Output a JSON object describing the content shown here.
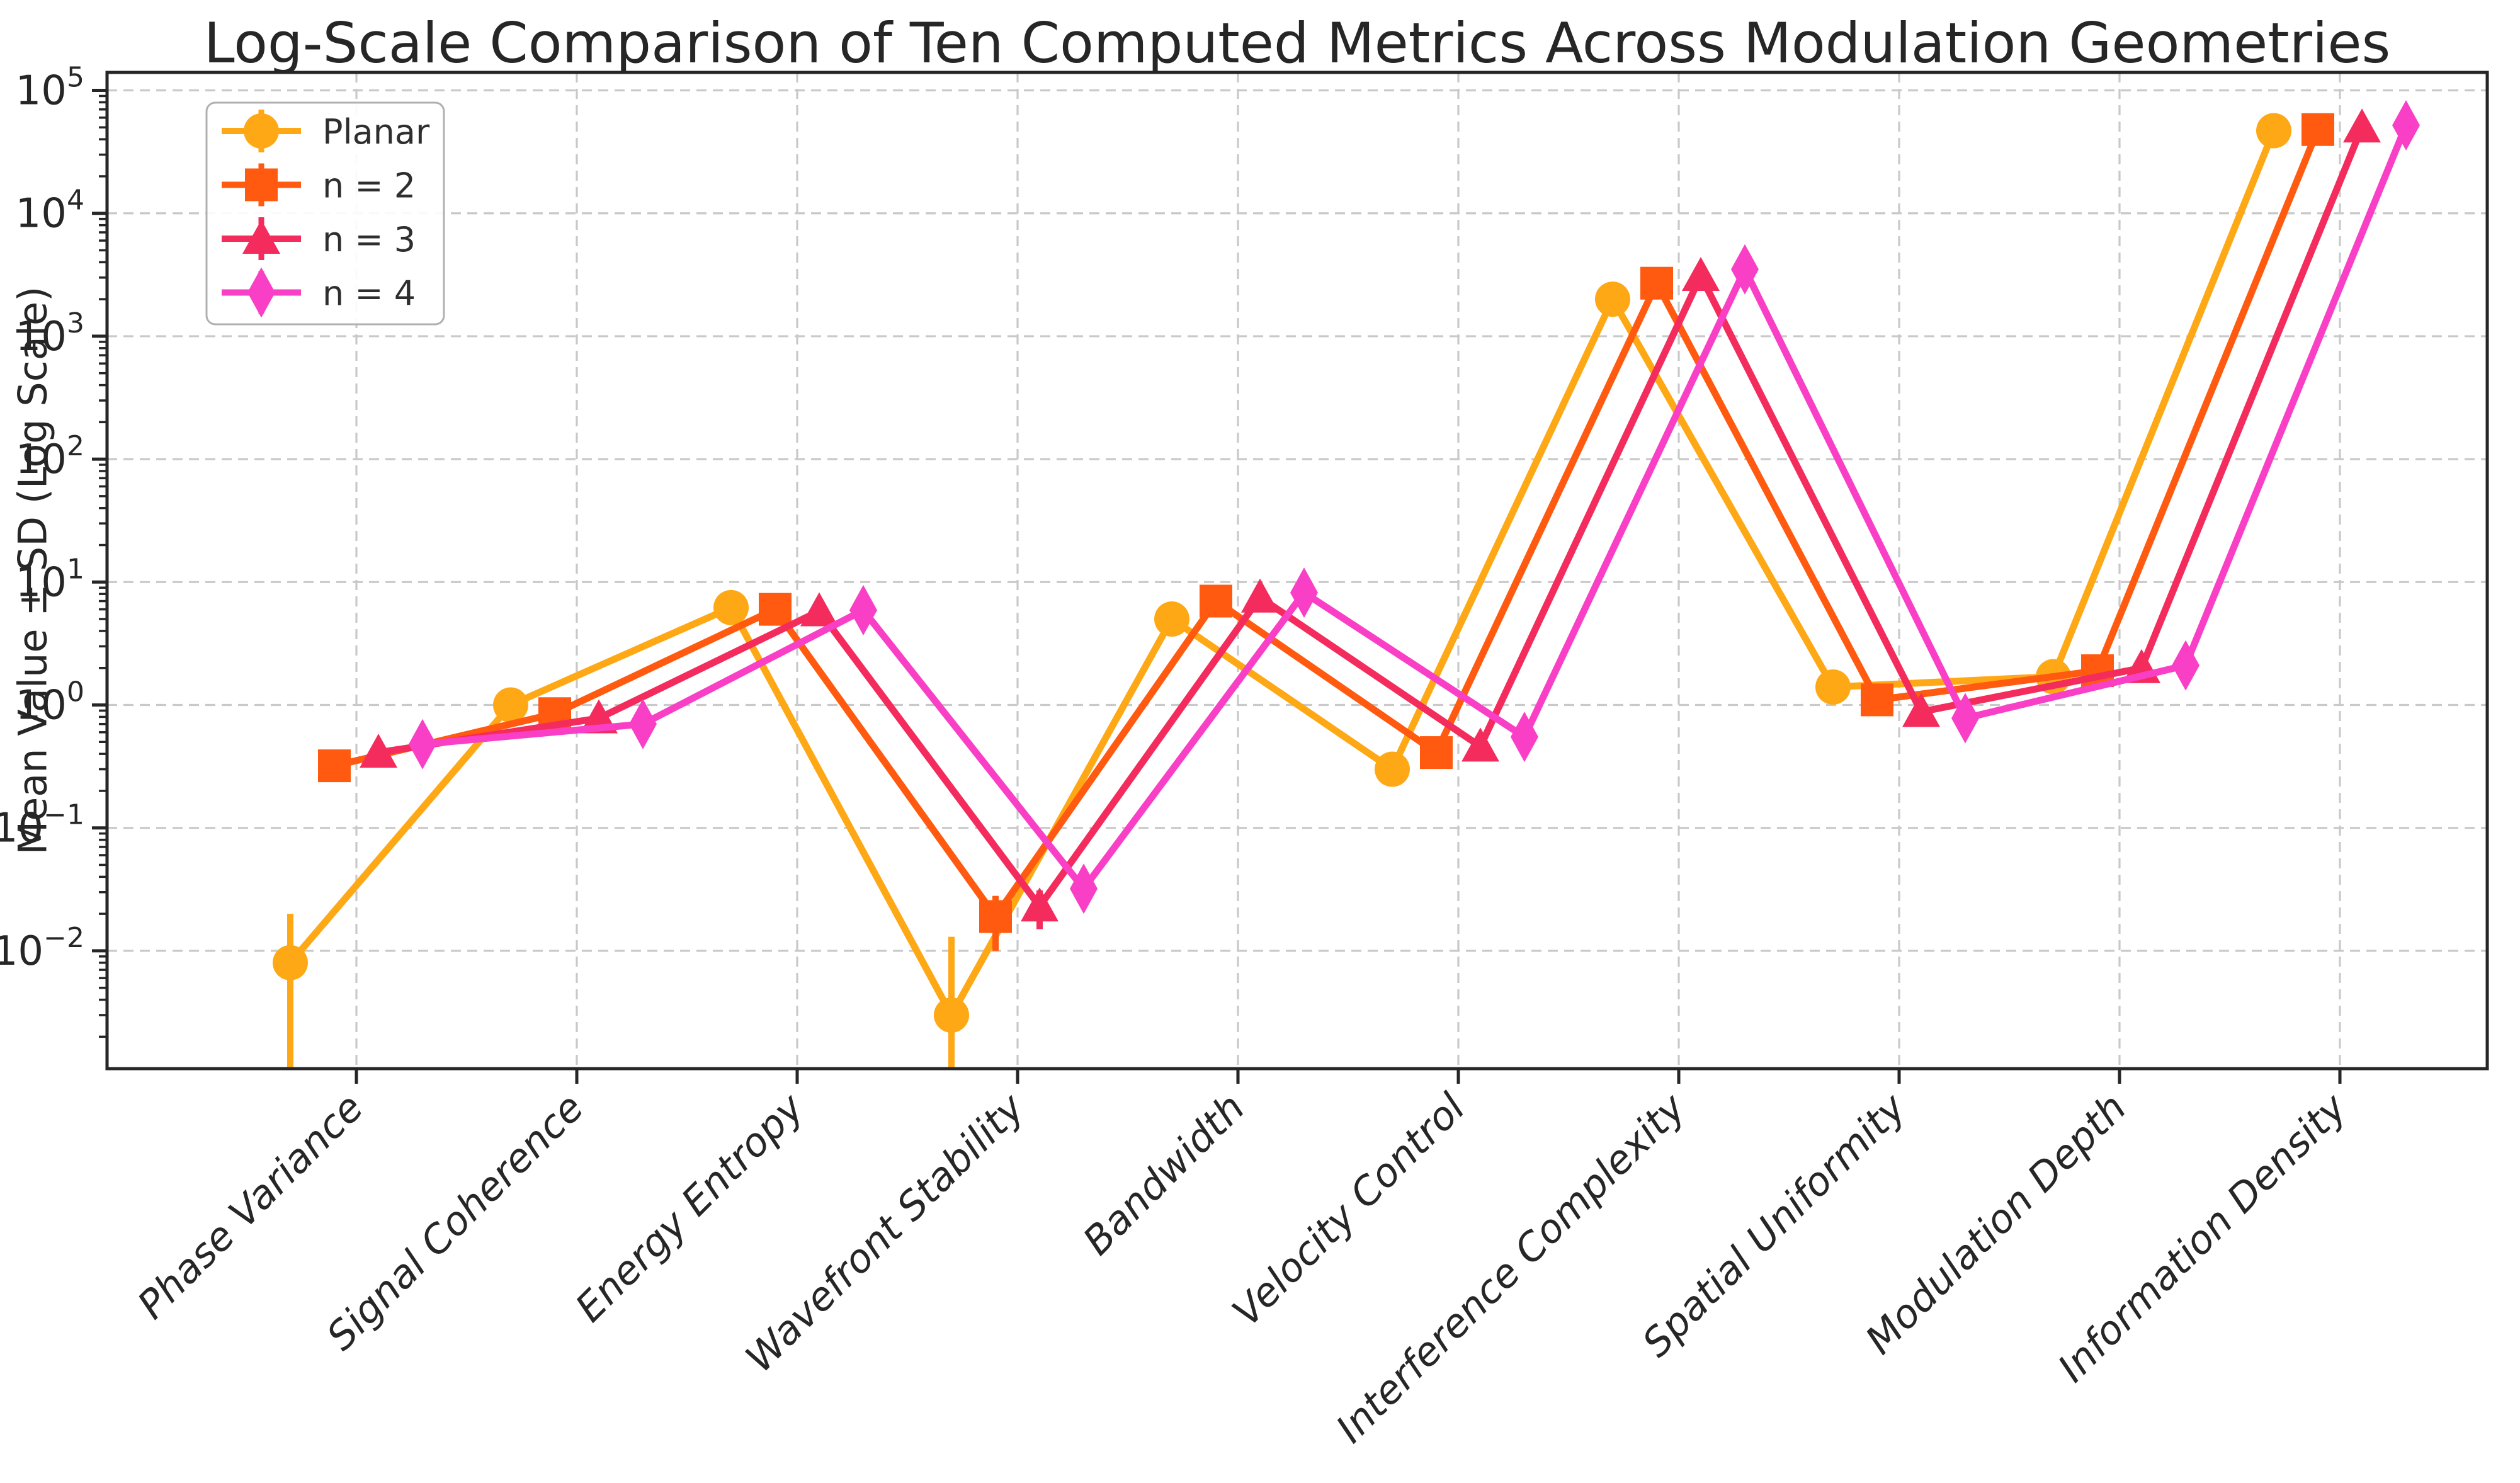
{
  "figure": {
    "title": "Log-Scale Comparison of Ten Computed Metrics Across Modulation Geometries",
    "y_axis_label": "Mean Value ± SD (Log Scale)"
  },
  "chart_data": {
    "type": "line",
    "title": "Log-Scale Comparison of Ten Computed Metrics Across Modulation Geometries",
    "xlabel": "",
    "ylabel": "Mean Value ± SD (Log Scale)",
    "log_scale_y": true,
    "ylim": [
      0.0011,
      140000
    ],
    "y_tick_exponents": [
      5,
      4,
      3,
      2,
      1,
      0,
      -1,
      -2
    ],
    "grid": "both, dashed, light-gray",
    "legend_position": "upper-left",
    "grid_color": "#c9c9c9",
    "axis_color": "#262626",
    "categories": [
      "Phase Variance",
      "Signal Coherence",
      "Energy Entropy",
      "Wavefront Stability",
      "Bandwidth",
      "Velocity Control",
      "Interference Complexity",
      "Spatial Uniformity",
      "Modulation Depth",
      "Information Density"
    ],
    "series": [
      {
        "name": "Planar",
        "marker": "circle",
        "color": "#FFA815",
        "values": [
          0.008,
          1.0,
          6.2,
          0.003,
          5.0,
          0.3,
          2000,
          1.4,
          1.7,
          47000
        ],
        "sd": [
          0.012,
          0.05,
          0.3,
          0.01,
          0.25,
          0.02,
          110,
          0.07,
          0.08,
          2000
        ]
      },
      {
        "name": "n = 2",
        "marker": "square",
        "color": "#FF5A0F",
        "values": [
          0.32,
          0.85,
          6.0,
          0.019,
          7.0,
          0.41,
          2700,
          1.1,
          1.9,
          48000
        ],
        "sd": [
          0.04,
          0.05,
          0.3,
          0.009,
          0.3,
          0.03,
          130,
          0.06,
          0.09,
          2000
        ]
      },
      {
        "name": "n = 3",
        "marker": "triangle",
        "color": "#F42B5D",
        "values": [
          0.41,
          0.78,
          5.8,
          0.023,
          7.5,
          0.46,
          3100,
          0.88,
          2.0,
          50000
        ],
        "sd": [
          0.05,
          0.05,
          0.3,
          0.008,
          0.35,
          0.03,
          150,
          0.05,
          0.1,
          2500
        ]
      },
      {
        "name": "n = 4",
        "marker": "diamond",
        "color": "#F93FC6",
        "values": [
          0.48,
          0.7,
          5.9,
          0.032,
          8.2,
          0.55,
          3500,
          0.78,
          2.1,
          52000
        ],
        "sd": [
          0.06,
          0.05,
          0.3,
          0.009,
          0.4,
          0.04,
          180,
          0.05,
          0.1,
          2500
        ]
      }
    ]
  }
}
